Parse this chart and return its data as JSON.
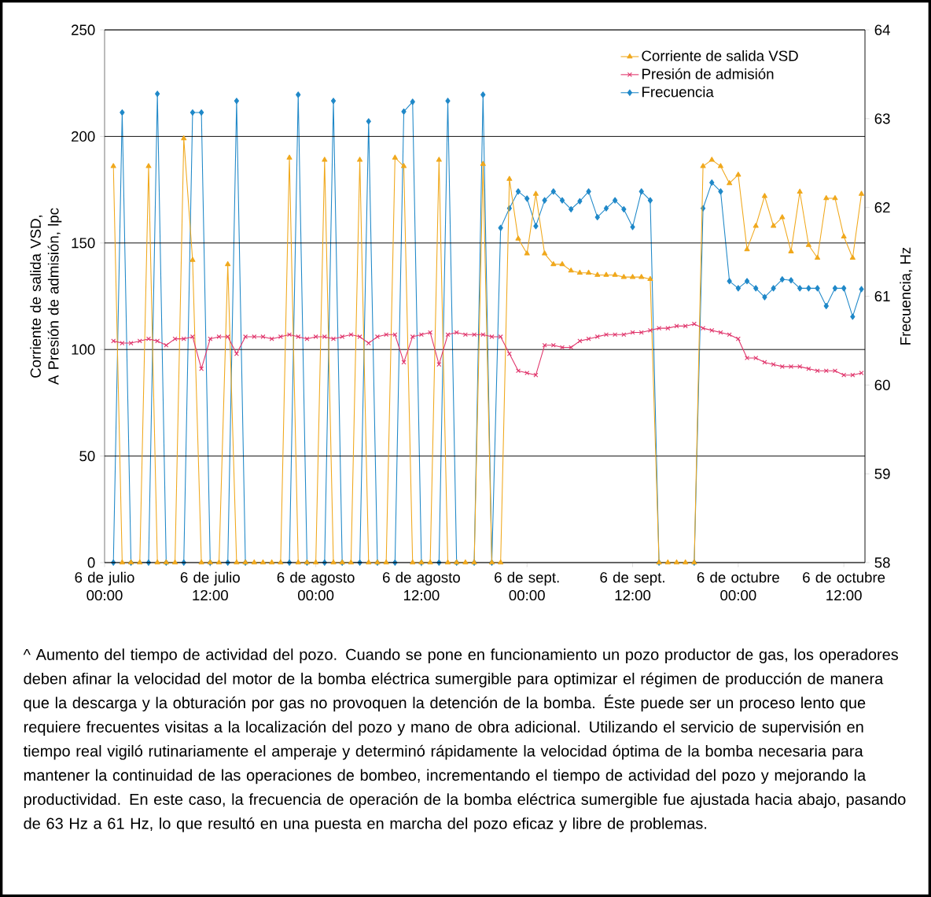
{
  "chart_data": {
    "type": "line",
    "ylabel": "Corriente de salida VSD, A Presión de admisión, lpc",
    "y2label": "Frecuencia, Hz",
    "categories": [
      "6 de julio 00:00",
      null,
      null,
      null,
      null,
      null,
      null,
      null,
      null,
      null,
      null,
      null,
      "6 de julio 12:00",
      null,
      null,
      null,
      null,
      null,
      null,
      null,
      null,
      null,
      null,
      null,
      "6 de agosto 00:00",
      null,
      null,
      null,
      null,
      null,
      null,
      null,
      null,
      null,
      null,
      null,
      "6 de agosto 12:00",
      null,
      null,
      null,
      null,
      null,
      null,
      null,
      null,
      null,
      null,
      null,
      "6 de sept. 00:00",
      null,
      null,
      null,
      null,
      null,
      null,
      null,
      null,
      null,
      null,
      null,
      "6 de sept. 12:00",
      null,
      null,
      null,
      null,
      null,
      null,
      null,
      null,
      null,
      null,
      null,
      "6 de octubre 00:00",
      null,
      null,
      null,
      null,
      null,
      null,
      null,
      null,
      null,
      null,
      null,
      "6 de octubre 12:00",
      null,
      null
    ],
    "ylim": [
      0,
      250
    ],
    "y2lim": [
      58,
      64
    ],
    "yticks": [
      0,
      50,
      100,
      150,
      200,
      250
    ],
    "y2ticks": [
      58,
      59,
      60,
      61,
      62,
      63,
      64
    ],
    "grid": "y",
    "legend": "top right",
    "series": [
      {
        "name": "Corriente de salida VSD",
        "color": "#f0a81c",
        "marker": "triangle",
        "values": [
          null,
          186,
          0,
          0,
          0,
          186,
          0,
          0,
          0,
          199,
          142,
          0,
          0,
          0,
          140,
          0,
          0,
          0,
          0,
          0,
          0,
          190,
          0,
          0,
          0,
          189,
          0,
          0,
          0,
          189,
          0,
          0,
          0,
          190,
          186,
          0,
          0,
          0,
          189,
          0,
          0,
          0,
          0,
          187,
          0,
          0,
          180,
          152,
          145,
          173,
          145,
          140,
          140,
          137,
          136,
          136,
          135,
          135,
          135,
          134,
          134,
          134,
          133,
          0,
          0,
          0,
          0,
          0,
          186,
          189,
          186,
          178,
          182,
          147,
          158,
          172,
          158,
          162,
          146,
          174,
          149,
          143,
          171,
          171,
          153,
          143,
          173
        ]
      },
      {
        "name": "Presión de admisión",
        "color": "#e0336a",
        "marker": "cross",
        "values": [
          null,
          104,
          103,
          103,
          104,
          105,
          104,
          102,
          105,
          105,
          106,
          91,
          105,
          106,
          106,
          98,
          106,
          106,
          106,
          105,
          106,
          107,
          106,
          105,
          106,
          106,
          105,
          106,
          107,
          106,
          103,
          106,
          107,
          107,
          94,
          106,
          107,
          108,
          93,
          107,
          108,
          107,
          107,
          107,
          106,
          106,
          98,
          90,
          89,
          88,
          102,
          102,
          101,
          101,
          104,
          105,
          106,
          107,
          107,
          107,
          108,
          108,
          109,
          110,
          110,
          111,
          111,
          112,
          110,
          109,
          108,
          107,
          105,
          96,
          96,
          94,
          93,
          92,
          92,
          92,
          91,
          90,
          90,
          90,
          88,
          88,
          89
        ]
      },
      {
        "name": "Frecuencia",
        "color": "#1f88c8",
        "marker": "diamond",
        "axis": "y2",
        "values": [
          null,
          58,
          63.07,
          58,
          null,
          58,
          63.28,
          58,
          null,
          58,
          63.07,
          63.07,
          58,
          null,
          58,
          63.2,
          58,
          null,
          null,
          null,
          null,
          58,
          63.27,
          58,
          null,
          58,
          63.2,
          58,
          null,
          58,
          62.97,
          58,
          null,
          58,
          63.08,
          63.19,
          58,
          null,
          58,
          63.2,
          58,
          null,
          58,
          63.27,
          58,
          61.77,
          61.99,
          62.18,
          62.1,
          61.79,
          62.08,
          62.18,
          62.08,
          61.98,
          62.07,
          62.18,
          61.89,
          61.99,
          62.08,
          61.98,
          61.78,
          62.18,
          62.08,
          58,
          null,
          null,
          null,
          58,
          61.99,
          62.28,
          62.18,
          61.17,
          61.09,
          61.17,
          61.09,
          60.99,
          61.09,
          61.19,
          61.18,
          61.09,
          61.09,
          61.09,
          60.89,
          61.09,
          61.09,
          60.77,
          61.08
        ]
      }
    ],
    "annotations": [
      "^ Aumento del tiempo de actividad del pozo. Cuando se pone en funcionamiento un pozo productor de gas, los operadores deben afinar la velocidad del motor de la bomba eléctrica sumergible para optimizar el régimen de producción de manera que la descarga y la obturación por gas no provoquen la detención de la bomba. Éste puede ser un proceso lento que requiere frecuentes visitas a la localización del pozo y mano de obra adicional. Utilizando el servicio de supervisión en tiempo real vigiló rutinariamente el amperaje y determinó rápidamente la velocidad óptima de la bomba necesaria para mantener la continuidad de las operaciones de bombeo, incrementando el tiempo de actividad del pozo y mejorando la productividad. En este caso, la frecuencia de operación de la bomba eléctrica sumergible fue ajustada hacia abajo, pasando de 63 Hz a 61 Hz, lo que resultó en una puesta en marcha del pozo eficaz y libre de problemas."
    ]
  }
}
